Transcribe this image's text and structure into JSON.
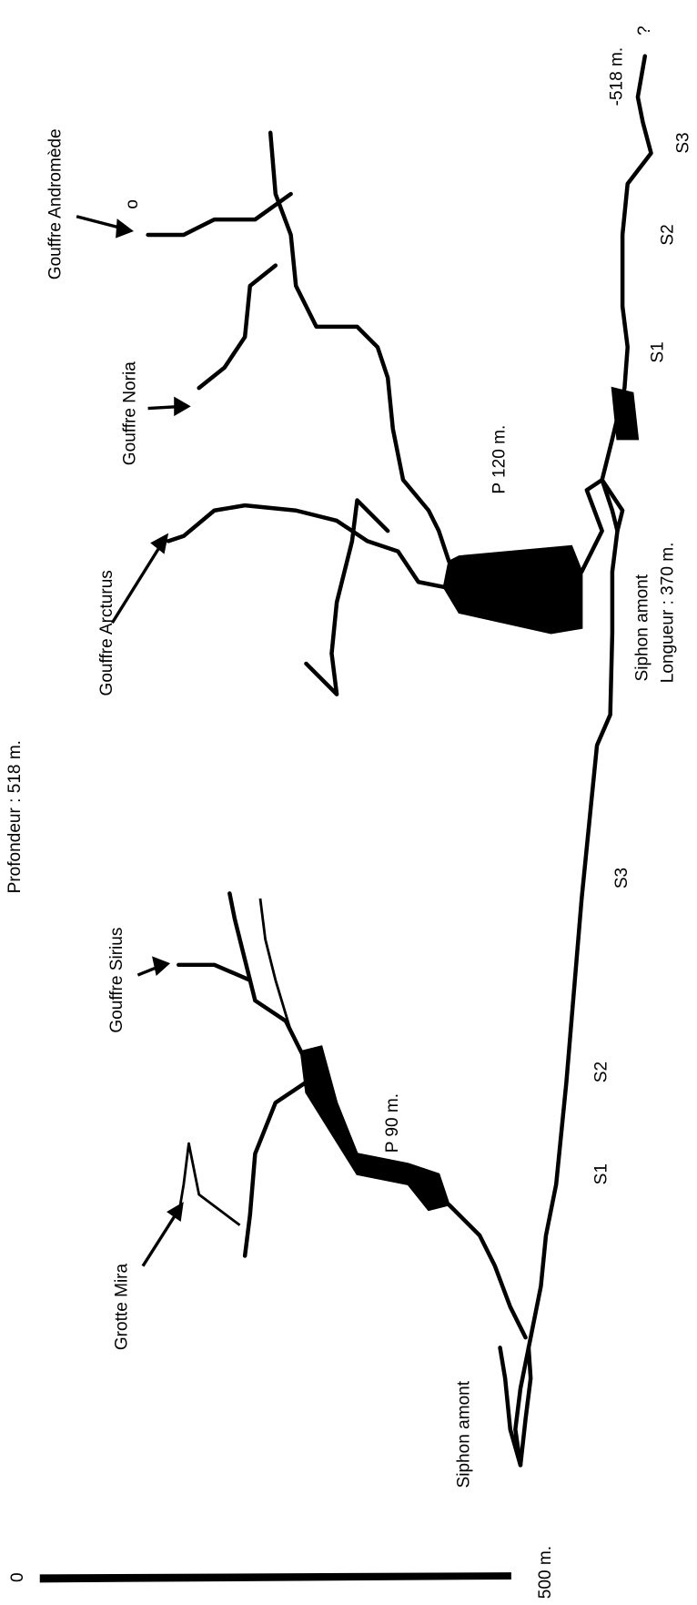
{
  "title": "Profondeur : 518 m.",
  "entrances": [
    "Gouffre Andromède",
    "Gouffre Noria",
    "Gouffre Arcturus",
    "Gouffre Sirius",
    "Grotte Mira"
  ],
  "entrance_mark": "o",
  "shafts": [
    "P 120 m.",
    "P 90 m."
  ],
  "upstream_siphons": [
    {
      "label": "Siphon amont"
    },
    {
      "label": "Siphon amont",
      "length": "Longueur : 370 m."
    }
  ],
  "sumps_east": [
    "S1",
    "S2",
    "S3"
  ],
  "sumps_west": [
    "S1",
    "S2",
    "S3"
  ],
  "bottom": {
    "depth": "-518 m.",
    "unknown": "?"
  },
  "scale": {
    "start": "0",
    "end": "500 m."
  }
}
